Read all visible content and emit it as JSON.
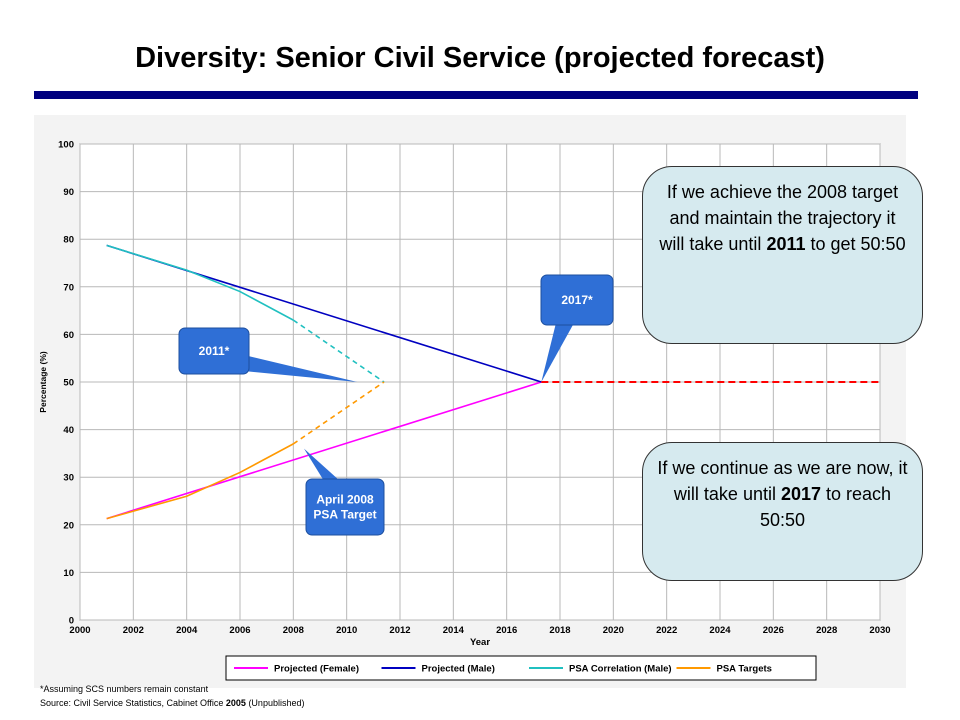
{
  "slide": {
    "title": "Diversity: Senior Civil Service (projected forecast)"
  },
  "chart_data": {
    "type": "line",
    "xlabel": "Year",
    "ylabel": "Percentage (%)",
    "xlim": [
      2000,
      2030
    ],
    "ylim": [
      0,
      100
    ],
    "x_ticks": [
      2000,
      2002,
      2004,
      2006,
      2008,
      2010,
      2012,
      2014,
      2016,
      2018,
      2020,
      2022,
      2024,
      2026,
      2028,
      2030
    ],
    "y_ticks": [
      0,
      10,
      20,
      30,
      40,
      50,
      60,
      70,
      80,
      90,
      100
    ],
    "grid": true,
    "legend_position": "bottom",
    "series": [
      {
        "name": "Projected (Female)",
        "color": "#ff00ff",
        "style": "solid",
        "x": [
          2001,
          2017.3
        ],
        "y": [
          21.3,
          50
        ]
      },
      {
        "name": "Projected (Male)",
        "color": "#0000c0",
        "style": "solid",
        "x": [
          2001,
          2017.3
        ],
        "y": [
          78.7,
          50
        ]
      },
      {
        "name": "PSA Correlation (Male)",
        "color": "#20c0c0",
        "style": "solid",
        "x": [
          2001,
          2004,
          2006,
          2008
        ],
        "y": [
          78.7,
          73.5,
          69,
          63
        ]
      },
      {
        "name": "PSA Correlation (Male)",
        "color": "#20c0c0",
        "style": "dashed",
        "show_in_legend": false,
        "x": [
          2008,
          2011.4
        ],
        "y": [
          63,
          50
        ]
      },
      {
        "name": "PSA Targets",
        "color": "#ff9900",
        "style": "solid",
        "x": [
          2001,
          2004,
          2006,
          2008
        ],
        "y": [
          21.3,
          26,
          31,
          37
        ]
      },
      {
        "name": "PSA Targets",
        "color": "#ff9900",
        "style": "dashed",
        "show_in_legend": false,
        "x": [
          2008,
          2011.4
        ],
        "y": [
          37,
          50
        ]
      },
      {
        "name": "",
        "color": "#ff0000",
        "style": "dashed",
        "show_in_legend": false,
        "x": [
          2017.3,
          2030
        ],
        "y": [
          50,
          50
        ]
      }
    ],
    "annotations": [
      {
        "text": "2011*",
        "pointer_x": 2010.4,
        "pointer_y": 50
      },
      {
        "text": "2017*",
        "pointer_x": 2017.3,
        "pointer_y": 50
      },
      {
        "text_lines": [
          "April 2008",
          "PSA Target"
        ],
        "pointer_x": 2008.4,
        "pointer_y": 36
      }
    ]
  },
  "callouts": {
    "top": {
      "text_before": "If we achieve the 2008 target and maintain the trajectory it will take until ",
      "bold": "2011",
      "text_after": " to get 50:50"
    },
    "bottom": {
      "text_before": "If we continue as we are now, it will take until ",
      "bold": "2017",
      "text_after": " to reach 50:50"
    }
  },
  "footnotes": {
    "assumption": "*Assuming SCS numbers remain constant",
    "source_prefix": "Source: Civil Service Statistics, Cabinet Office ",
    "source_year": "2005",
    "source_suffix": " (Unpublished)"
  }
}
